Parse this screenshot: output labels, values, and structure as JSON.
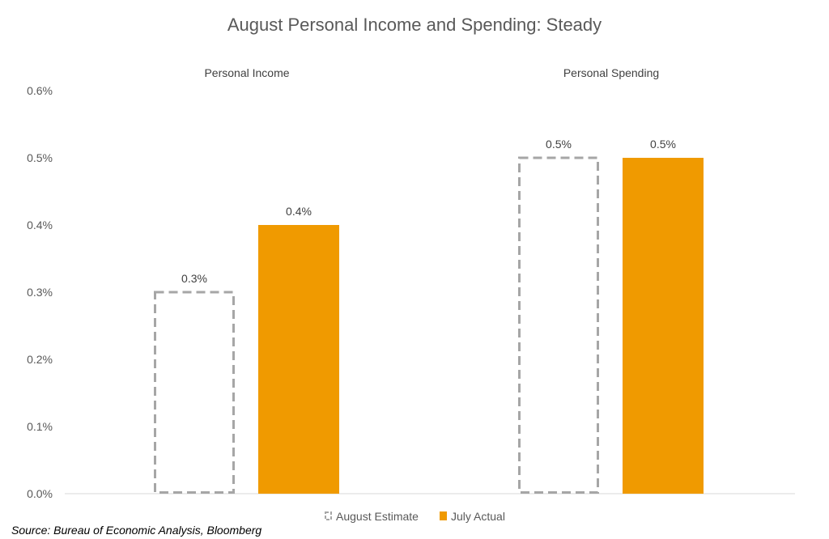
{
  "chart_data": {
    "type": "bar",
    "title": "August Personal Income and Spending: Steady",
    "categories": [
      "Personal Income",
      "Personal Spending"
    ],
    "series": [
      {
        "name": "August Estimate",
        "values": [
          0.3,
          0.5
        ],
        "labels": [
          "0.3%",
          "0.5%"
        ],
        "style": "dashed-outline",
        "color": "#A6A6A6"
      },
      {
        "name": "July Actual",
        "values": [
          0.4,
          0.5
        ],
        "labels": [
          "0.4%",
          "0.5%"
        ],
        "style": "solid",
        "color": "#F09A00"
      }
    ],
    "ylim": [
      0,
      0.6
    ],
    "yticks": [
      {
        "value": 0.0,
        "label": "0.0%"
      },
      {
        "value": 0.1,
        "label": "0.1%"
      },
      {
        "value": 0.2,
        "label": "0.2%"
      },
      {
        "value": 0.3,
        "label": "0.3%"
      },
      {
        "value": 0.4,
        "label": "0.4%"
      },
      {
        "value": 0.5,
        "label": "0.5%"
      },
      {
        "value": 0.6,
        "label": "0.6%"
      }
    ],
    "category_label_position": "top",
    "grid": false,
    "legend_position": "bottom",
    "source": "Source: Bureau of Economic Analysis, Bloomberg"
  }
}
